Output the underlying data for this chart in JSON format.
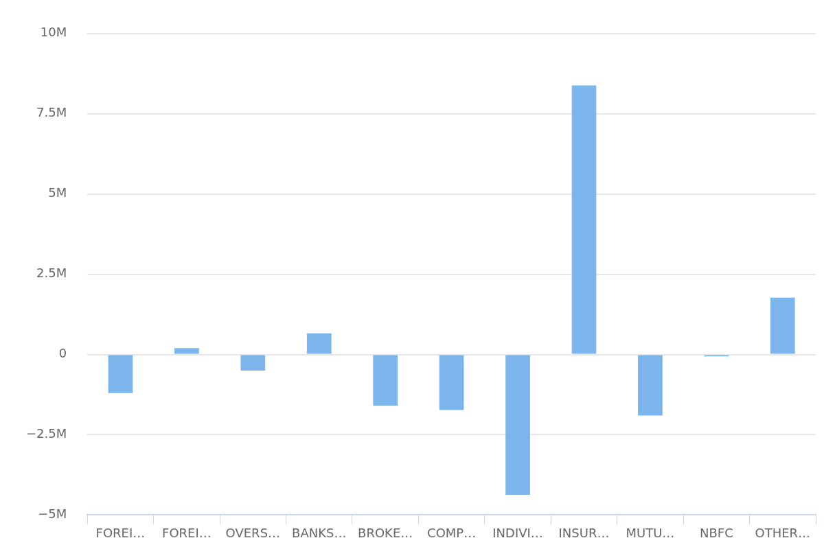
{
  "chart_data": {
    "type": "bar",
    "categories": [
      "FOREI…",
      "FOREI…",
      "OVERS…",
      "BANKS…",
      "BROKE…",
      "COMP…",
      "INDIVI…",
      "INSUR…",
      "MUTU…",
      "NBFC",
      "OTHER…"
    ],
    "values": [
      -1.2,
      0.2,
      -0.5,
      0.66,
      -1.6,
      -1.73,
      -4.37,
      8.38,
      -1.9,
      -0.06,
      1.77
    ],
    "color": "#7cb5ec",
    "ylim": [
      -5,
      10
    ],
    "yticks": [
      {
        "value": -5,
        "label": "−5M"
      },
      {
        "value": -2.5,
        "label": "−2.5M"
      },
      {
        "value": 0,
        "label": "0"
      },
      {
        "value": 2.5,
        "label": "2.5M"
      },
      {
        "value": 5,
        "label": "5M"
      },
      {
        "value": 7.5,
        "label": "7.5M"
      },
      {
        "value": 10,
        "label": "10M"
      }
    ],
    "grid": "y",
    "legend": false
  }
}
